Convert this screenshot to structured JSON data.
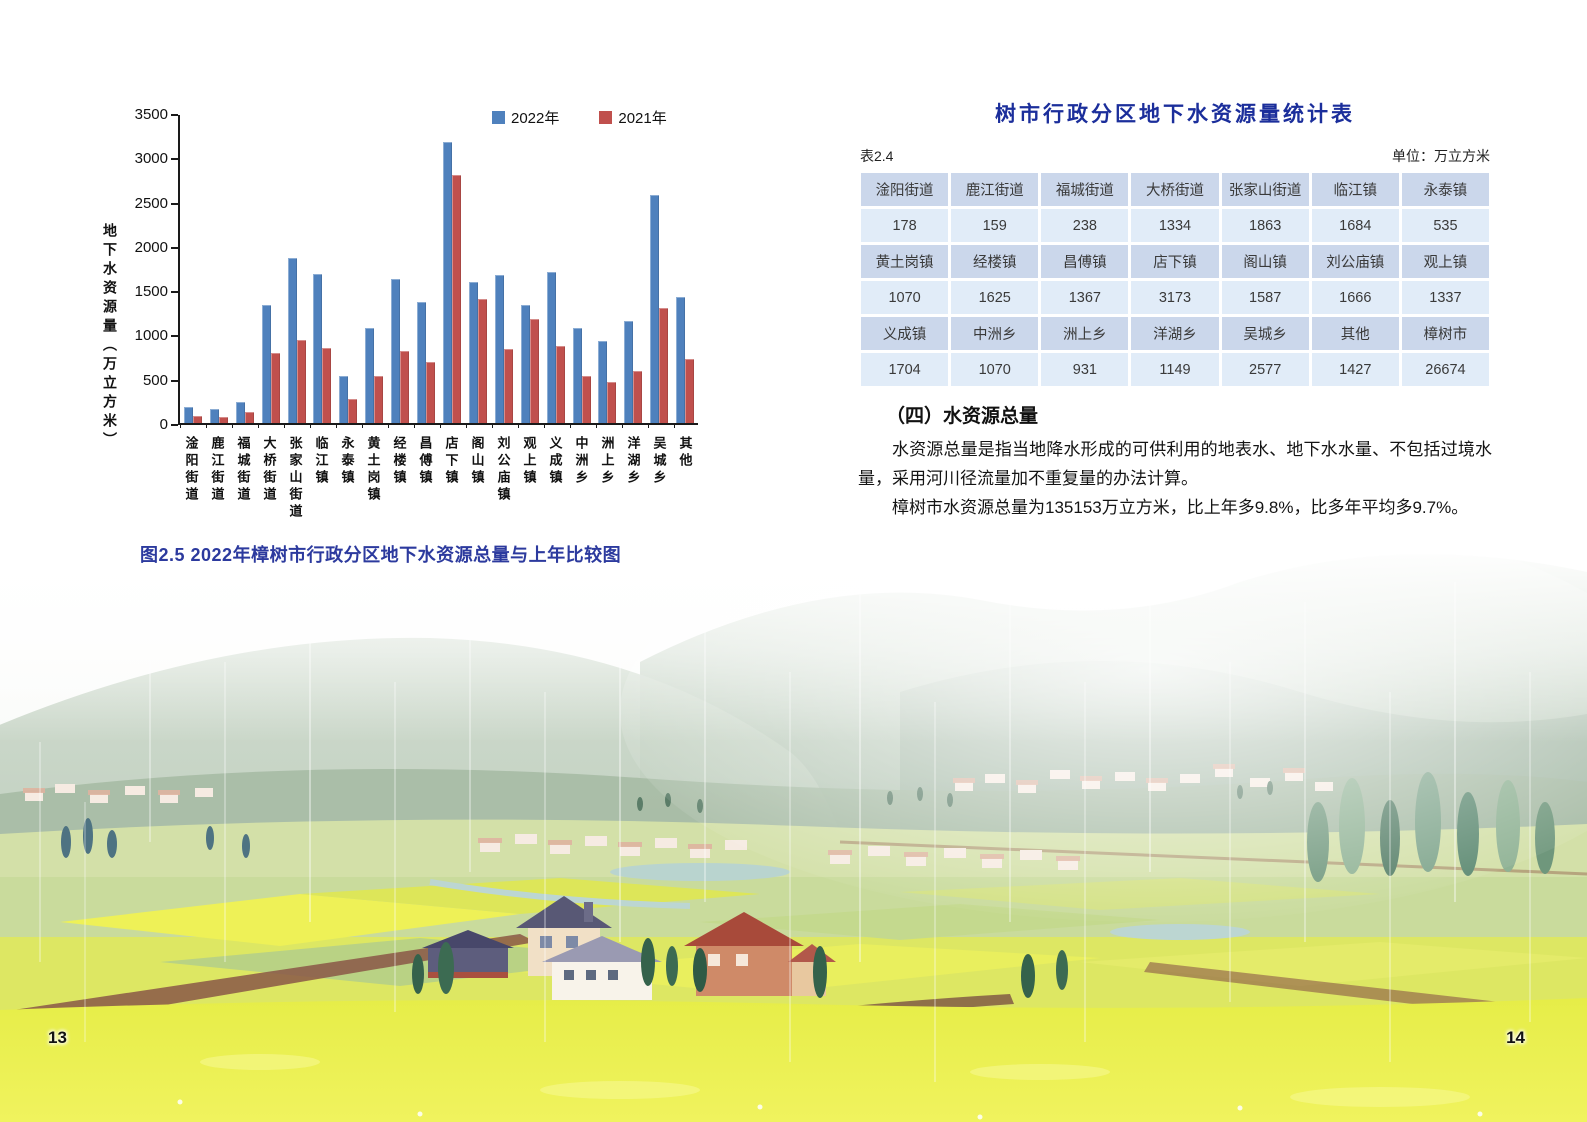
{
  "page_left": {
    "figure_caption": "图2.5 2022年樟树市行政分区地下水资源总量与上年比较图",
    "page_number": "13"
  },
  "chart_data": {
    "type": "bar",
    "title": "",
    "xlabel": "",
    "ylabel": "地下水资源量（万立方米）",
    "ylim": [
      0,
      3500
    ],
    "ytick_step": 500,
    "grid": false,
    "legend_position": "top-right",
    "categories": [
      "淦阳街道",
      "鹿江街道",
      "福城街道",
      "大桥街道",
      "张家山街道",
      "临江镇",
      "永泰镇",
      "黄土岗镇",
      "经楼镇",
      "昌傅镇",
      "店下镇",
      "阁山镇",
      "刘公庙镇",
      "观上镇",
      "义成镇",
      "中洲乡",
      "洲上乡",
      "洋湖乡",
      "吴城乡",
      "其他"
    ],
    "series": [
      {
        "name": "2022年",
        "color": "#4F81BD",
        "values": [
          178,
          159,
          238,
          1334,
          1863,
          1684,
          535,
          1070,
          1625,
          1367,
          3173,
          1587,
          1666,
          1337,
          1704,
          1070,
          931,
          1149,
          2577,
          1427
        ]
      },
      {
        "name": "2021年",
        "color": "#C0504D",
        "values": [
          85,
          70,
          120,
          790,
          940,
          850,
          270,
          535,
          815,
          690,
          2800,
          1400,
          840,
          1175,
          865,
          535,
          460,
          585,
          1300,
          720
        ]
      }
    ]
  },
  "page_right": {
    "table_title": "树市行政分区地下水资源量统计表",
    "table_label": "表2.4",
    "table_unit": "单位：万立方米",
    "table": {
      "rows": [
        {
          "type": "header",
          "cells": [
            "淦阳街道",
            "鹿江街道",
            "福城街道",
            "大桥街道",
            "张家山街道",
            "临江镇",
            "永泰镇"
          ]
        },
        {
          "type": "data",
          "cells": [
            "178",
            "159",
            "238",
            "1334",
            "1863",
            "1684",
            "535"
          ]
        },
        {
          "type": "header",
          "cells": [
            "黄土岗镇",
            "经楼镇",
            "昌傅镇",
            "店下镇",
            "阁山镇",
            "刘公庙镇",
            "观上镇"
          ]
        },
        {
          "type": "data",
          "cells": [
            "1070",
            "1625",
            "1367",
            "3173",
            "1587",
            "1666",
            "1337"
          ]
        },
        {
          "type": "header",
          "cells": [
            "义成镇",
            "中洲乡",
            "洲上乡",
            "洋湖乡",
            "吴城乡",
            "其他",
            "樟树市"
          ]
        },
        {
          "type": "data",
          "cells": [
            "1704",
            "1070",
            "931",
            "1149",
            "2577",
            "1427",
            "26674"
          ]
        }
      ]
    },
    "section_heading": "（四）水资源总量",
    "paragraphs": [
      "水资源总量是指当地降水形成的可供利用的地表水、地下水水量、不包括过境水量，采用河川径流量加不重复量的办法计算。",
      "樟树市水资源总量为135153万立方米，比上年多9.8%，比多年平均多9.7%。"
    ],
    "page_number": "14"
  },
  "colors": {
    "series_2022": "#4F81BD",
    "series_2021": "#C0504D",
    "table_header_bg": "#CBD7EB",
    "table_data_bg": "#E1ECF8",
    "table_title_blue": "#1B2E9B",
    "caption_blue": "#2C3A9E"
  }
}
